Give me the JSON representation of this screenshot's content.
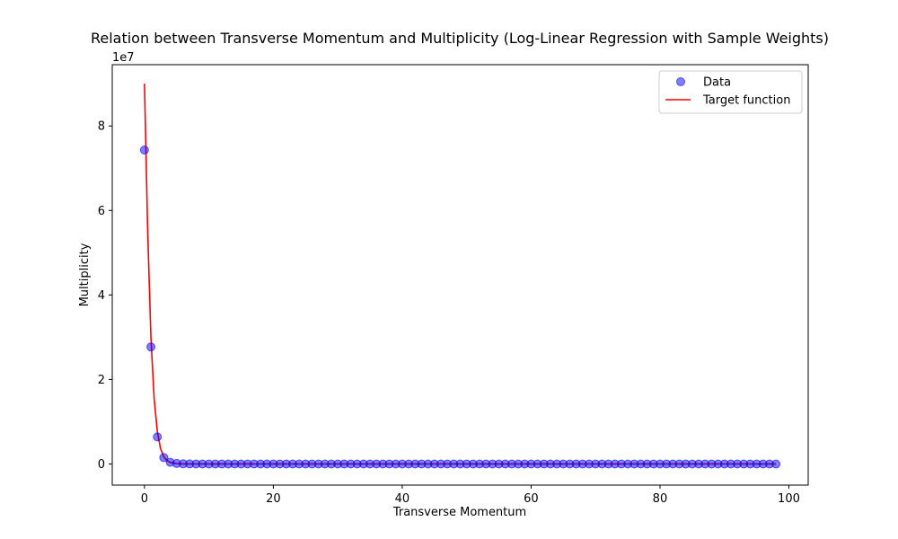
{
  "chart_data": {
    "type": "scatter",
    "title": "Relation between Transverse Momentum and Multiplicity (Log-Linear Regression with Sample Weights)",
    "xlabel": "Transverse Momentum",
    "ylabel": "Multiplicity",
    "y_offset_label": "1e7",
    "xlim": [
      -5,
      103
    ],
    "ylim": [
      -5000000,
      94500000
    ],
    "x_ticks": [
      0,
      20,
      40,
      60,
      80,
      100
    ],
    "y_ticks": [
      0,
      20000000,
      40000000,
      60000000,
      80000000
    ],
    "y_tick_labels": [
      "0",
      "2",
      "4",
      "6",
      "8"
    ],
    "grid": false,
    "legend_position": "top-right",
    "series": [
      {
        "name": "Data",
        "kind": "scatter",
        "color": "#0000ff",
        "opacity": 0.5,
        "x": [
          0,
          1,
          2,
          3,
          4,
          5,
          6,
          7,
          8,
          9,
          10,
          11,
          12,
          13,
          14,
          15,
          16,
          17,
          18,
          19,
          20,
          21,
          22,
          23,
          24,
          25,
          26,
          27,
          28,
          29,
          30,
          31,
          32,
          33,
          34,
          35,
          36,
          37,
          38,
          39,
          40,
          41,
          42,
          43,
          44,
          45,
          46,
          47,
          48,
          49,
          50,
          51,
          52,
          53,
          54,
          55,
          56,
          57,
          58,
          59,
          60,
          61,
          62,
          63,
          64,
          65,
          66,
          67,
          68,
          69,
          70,
          71,
          72,
          73,
          74,
          75,
          76,
          77,
          78,
          79,
          80,
          81,
          82,
          83,
          84,
          85,
          86,
          87,
          88,
          89,
          90,
          91,
          92,
          93,
          94,
          95,
          96,
          97,
          98
        ],
        "y": [
          74300000,
          27700000,
          6400000,
          1500000,
          400000,
          120000,
          40000,
          12000,
          4000,
          1200,
          400,
          120,
          40,
          12,
          4,
          1,
          0,
          0,
          0,
          0,
          0,
          0,
          0,
          0,
          0,
          0,
          0,
          0,
          0,
          0,
          0,
          0,
          0,
          0,
          0,
          0,
          0,
          0,
          0,
          0,
          0,
          0,
          0,
          0,
          0,
          0,
          0,
          0,
          0,
          0,
          0,
          0,
          0,
          0,
          0,
          0,
          0,
          0,
          0,
          0,
          0,
          0,
          0,
          0,
          0,
          0,
          0,
          0,
          0,
          0,
          0,
          0,
          0,
          0,
          0,
          0,
          0,
          0,
          0,
          0,
          0,
          0,
          0,
          0,
          0,
          0,
          0,
          0,
          0,
          0,
          0,
          0,
          0,
          0,
          0,
          0,
          0,
          0,
          0
        ]
      },
      {
        "name": "Target function",
        "kind": "line",
        "color": "#ff0000",
        "x": [
          0,
          0.5,
          1,
          1.5,
          2,
          2.5,
          3,
          3.5,
          4,
          5,
          6,
          7,
          8,
          10,
          15,
          20,
          30,
          40,
          50,
          60,
          70,
          80,
          90,
          98
        ],
        "y": [
          90000000,
          55000000,
          30000000,
          15500000,
          7600000,
          3600000,
          1700000,
          800000,
          380000,
          90000,
          20000,
          5000,
          1200,
          70,
          0,
          0,
          0,
          0,
          0,
          0,
          0,
          0,
          0,
          0
        ]
      }
    ]
  }
}
